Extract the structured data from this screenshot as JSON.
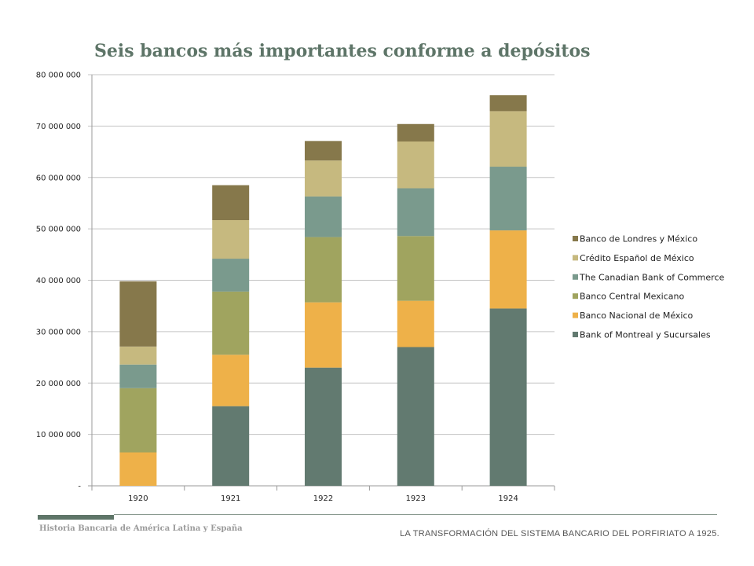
{
  "chart_data": {
    "type": "bar",
    "stacked": true,
    "title": "Seis bancos más importantes conforme a depósitos",
    "categories": [
      "1920",
      "1921",
      "1922",
      "1923",
      "1924"
    ],
    "ylim": [
      0,
      80000000
    ],
    "yticks": [
      0,
      10000000,
      20000000,
      30000000,
      40000000,
      50000000,
      60000000,
      70000000,
      80000000
    ],
    "ytick_labels": [
      "-",
      "10 000 000",
      "20 000 000",
      "30 000 000",
      "40 000 000",
      "50 000 000",
      "60 000 000",
      "70 000 000",
      "80 000 000"
    ],
    "grid": true,
    "legend_position": "right",
    "series": [
      {
        "name": "Bank of Montreal y Sucursales",
        "color": "#627a70",
        "values": [
          0,
          15500000,
          23000000,
          27000000,
          34500000
        ]
      },
      {
        "name": "Banco Nacional de México",
        "color": "#eeb149",
        "values": [
          6500000,
          10000000,
          12700000,
          9000000,
          15200000
        ]
      },
      {
        "name": "Banco Central Mexicano",
        "color": "#a0a45f",
        "values": [
          12500000,
          12300000,
          12700000,
          12600000,
          0
        ]
      },
      {
        "name": "The Canadian Bank of Commerce",
        "color": "#7a9a8d",
        "values": [
          4600000,
          6400000,
          7900000,
          9300000,
          12400000
        ]
      },
      {
        "name": "Crédito Español de México",
        "color": "#c6b97f",
        "values": [
          3500000,
          7500000,
          7000000,
          9100000,
          10800000
        ]
      },
      {
        "name": "Banco de Londres y México",
        "color": "#86784b",
        "values": [
          12700000,
          6800000,
          3800000,
          3400000,
          3100000
        ]
      }
    ]
  },
  "footer": {
    "left_text": "Historia Bancaria de América Latina y España",
    "right_text": "LA TRANSFORMACIÓN DEL SISTEMA BANCARIO DEL PORFIRIATO A 1925."
  }
}
